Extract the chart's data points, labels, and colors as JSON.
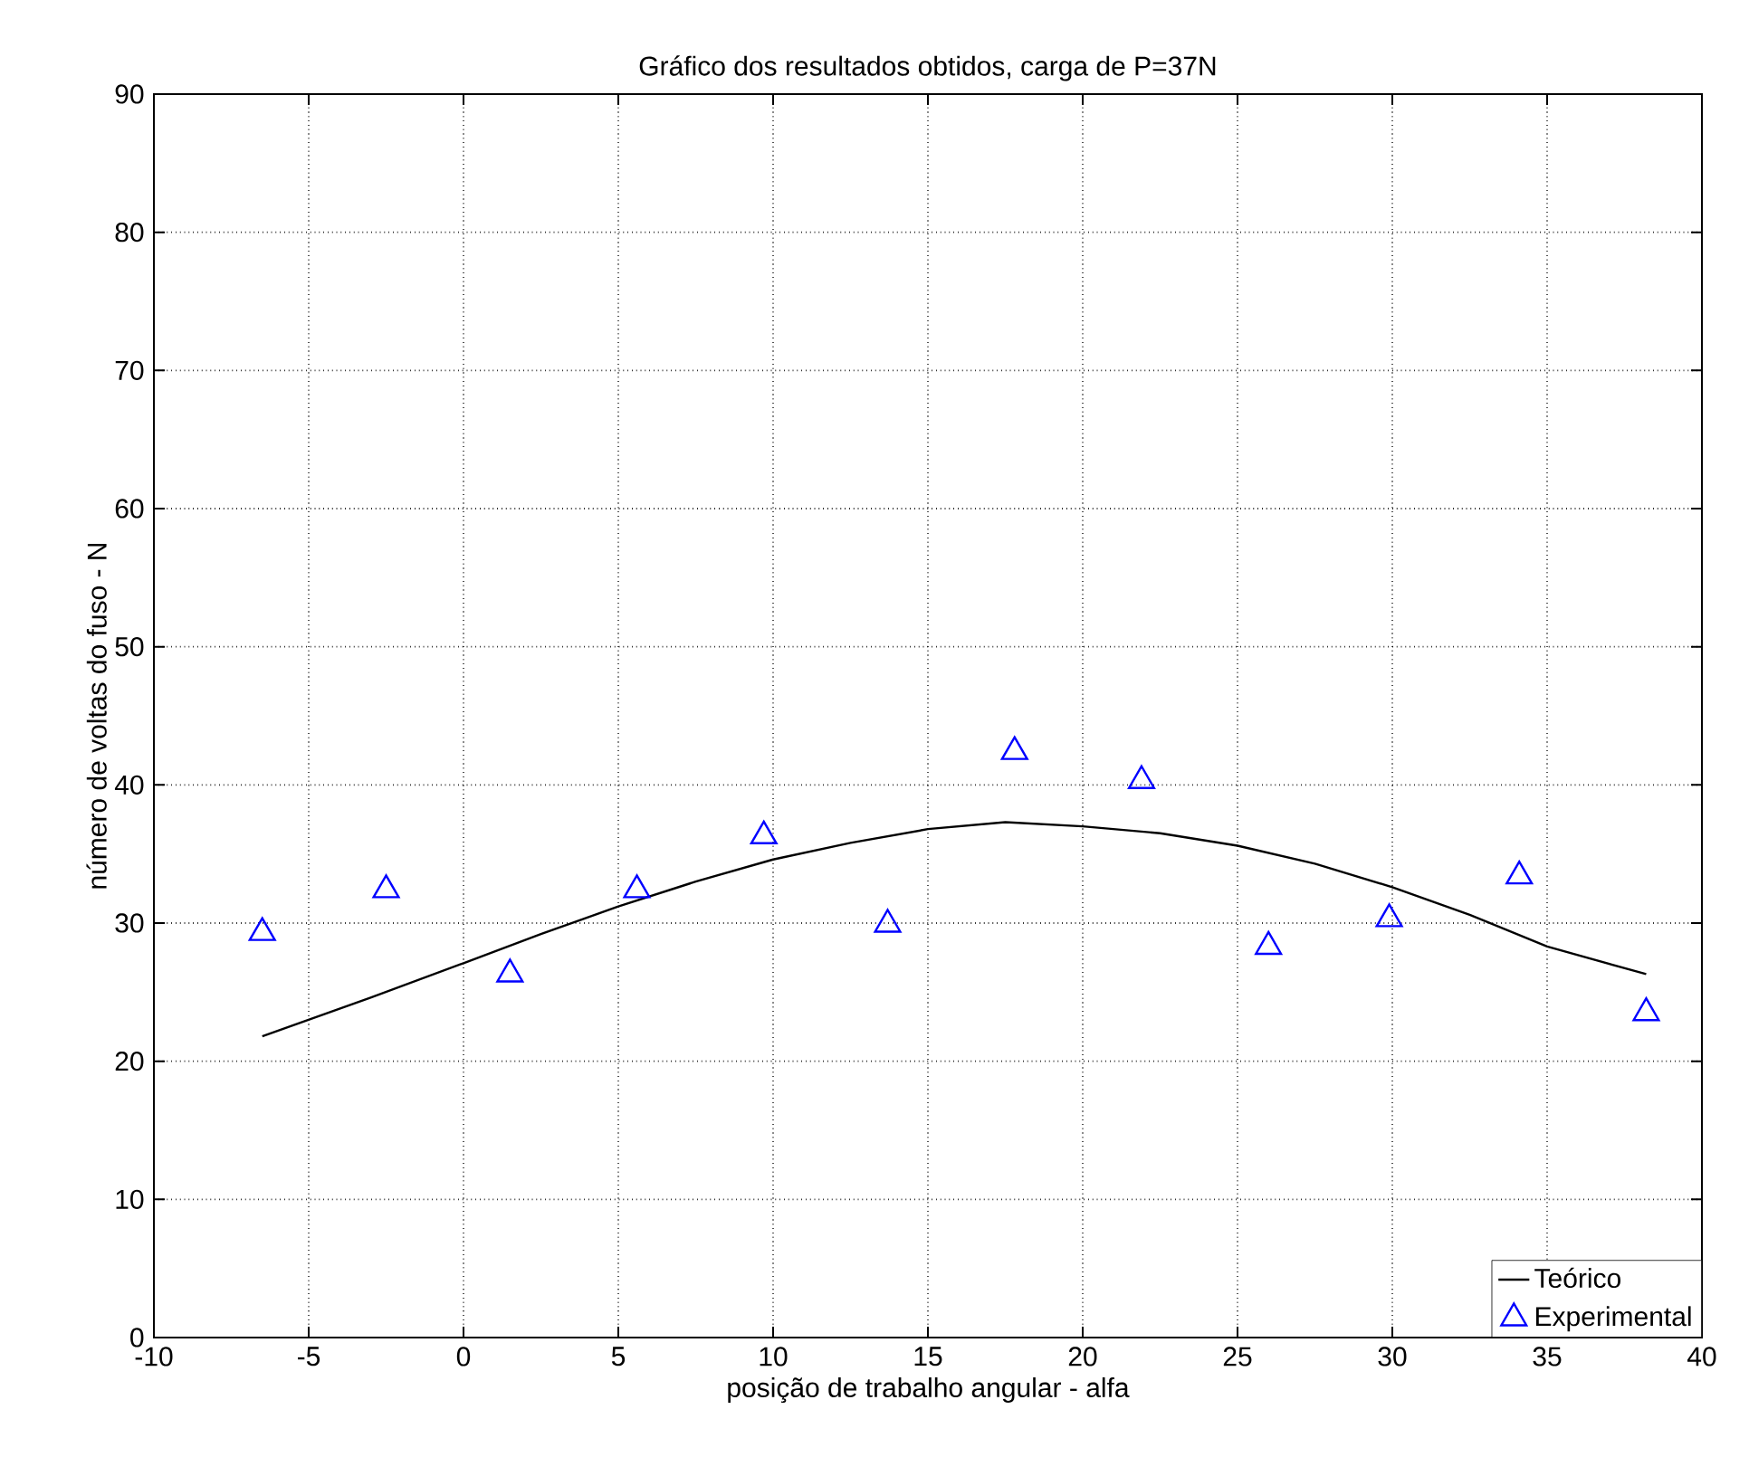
{
  "chart_data": {
    "type": "line",
    "title": "Gráfico dos resultados obtidos, carga de P=37N",
    "xlabel": "posição de trabalho angular - alfa",
    "ylabel": "número de voltas do fuso - N",
    "xlim": [
      -10,
      40
    ],
    "xticks": [
      -10,
      -5,
      0,
      5,
      10,
      15,
      20,
      25,
      30,
      35,
      40
    ],
    "ylim": [
      0,
      90
    ],
    "yticks": [
      0,
      10,
      20,
      30,
      40,
      50,
      60,
      70,
      80,
      90
    ],
    "grid": true,
    "legend": "bottom right",
    "series": [
      {
        "name": "Teórico",
        "color": "#000000",
        "marker": "none",
        "line_style": "solid",
        "x": [
          -6.5,
          -3,
          0,
          2.5,
          5,
          7.5,
          10,
          12.5,
          15,
          17.5,
          20,
          22.5,
          25,
          27.5,
          30,
          32.5,
          35,
          38.2
        ],
        "values": [
          21.8,
          24.6,
          27.1,
          29.2,
          31.2,
          33.0,
          34.6,
          35.8,
          36.8,
          37.3,
          37.0,
          36.5,
          35.6,
          34.3,
          32.6,
          30.6,
          28.3,
          26.3
        ]
      },
      {
        "name": "Experimental",
        "type": "scatter",
        "color": "#0000ff",
        "marker": "triangle",
        "x": [
          -6.5,
          -2.5,
          1.5,
          5.6,
          9.7,
          13.7,
          17.8,
          21.9,
          26.0,
          29.9,
          34.1,
          38.2
        ],
        "values": [
          29.3,
          32.4,
          26.3,
          32.4,
          36.3,
          29.9,
          42.4,
          40.3,
          28.3,
          30.3,
          33.4,
          23.5
        ]
      }
    ]
  }
}
